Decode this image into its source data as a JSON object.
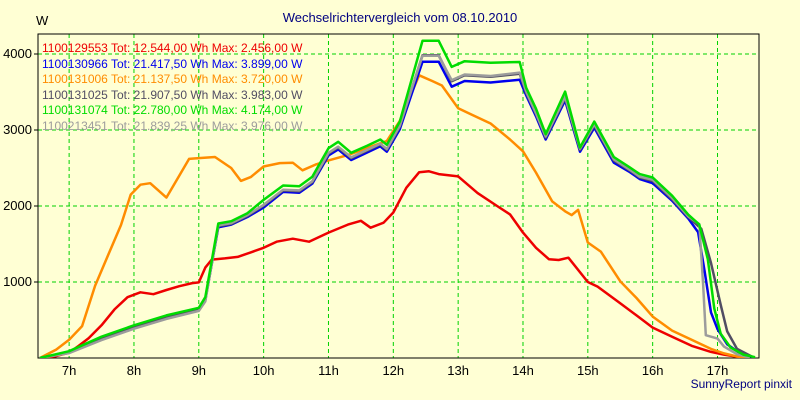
{
  "footer": "SunnyReport pinxit",
  "colors": {
    "background": "#FFFFD4",
    "grid": "#00D200",
    "frame": "#000000",
    "title_text": "#000080",
    "axis_text": "#000000",
    "footer_text": "#000080"
  },
  "chart_data": {
    "type": "line",
    "title": "Wechselrichtervergleich vom 08.10.2010",
    "ylabel": "W",
    "xlabel": "",
    "grid": "on-dashed-green",
    "legend_position": "top-left",
    "xlim": [
      6.52,
      17.64
    ],
    "ylim": [
      0,
      4263
    ],
    "tot_label": "Tot:",
    "wh_unit": "Wh",
    "max_label": "Max:",
    "w_unit": "W",
    "x_ticks": [
      {
        "h": 7,
        "label": "7h"
      },
      {
        "h": 8,
        "label": "8h"
      },
      {
        "h": 9,
        "label": "9h"
      },
      {
        "h": 10,
        "label": "10h"
      },
      {
        "h": 11,
        "label": "11h"
      },
      {
        "h": 12,
        "label": "12h"
      },
      {
        "h": 13,
        "label": "13h"
      },
      {
        "h": 14,
        "label": "14h"
      },
      {
        "h": 15,
        "label": "15h"
      },
      {
        "h": 16,
        "label": "16h"
      },
      {
        "h": 17,
        "label": "17h"
      }
    ],
    "y_ticks": [
      {
        "v": 1000,
        "label": "1000"
      },
      {
        "v": 2000,
        "label": "2000"
      },
      {
        "v": 3000,
        "label": "3000"
      },
      {
        "v": 4000,
        "label": "4000"
      }
    ],
    "draw_order": [
      0,
      2,
      1,
      3,
      5,
      4
    ],
    "series": [
      {
        "serial": "1100129553",
        "tot_wh": "12.544,00",
        "max_w": "2.456,00",
        "color": "#EE0000",
        "points": [
          [
            6.6,
            0
          ],
          [
            6.8,
            25
          ],
          [
            7.0,
            70
          ],
          [
            7.15,
            160
          ],
          [
            7.3,
            260
          ],
          [
            7.5,
            430
          ],
          [
            7.7,
            640
          ],
          [
            7.9,
            800
          ],
          [
            8.1,
            865
          ],
          [
            8.3,
            840
          ],
          [
            8.5,
            895
          ],
          [
            8.7,
            945
          ],
          [
            8.9,
            985
          ],
          [
            9.0,
            995
          ],
          [
            9.1,
            1190
          ],
          [
            9.2,
            1295
          ],
          [
            9.4,
            1310
          ],
          [
            9.6,
            1330
          ],
          [
            9.8,
            1390
          ],
          [
            10.0,
            1450
          ],
          [
            10.2,
            1530
          ],
          [
            10.45,
            1570
          ],
          [
            10.7,
            1530
          ],
          [
            11.0,
            1650
          ],
          [
            11.3,
            1755
          ],
          [
            11.5,
            1805
          ],
          [
            11.65,
            1715
          ],
          [
            11.85,
            1780
          ],
          [
            12.0,
            1915
          ],
          [
            12.2,
            2240
          ],
          [
            12.4,
            2445
          ],
          [
            12.55,
            2456
          ],
          [
            12.7,
            2420
          ],
          [
            13.0,
            2390
          ],
          [
            13.3,
            2170
          ],
          [
            13.6,
            2000
          ],
          [
            13.8,
            1890
          ],
          [
            14.0,
            1650
          ],
          [
            14.2,
            1450
          ],
          [
            14.4,
            1300
          ],
          [
            14.55,
            1290
          ],
          [
            14.7,
            1320
          ],
          [
            15.0,
            1000
          ],
          [
            15.15,
            940
          ],
          [
            15.5,
            720
          ],
          [
            15.75,
            560
          ],
          [
            16.0,
            400
          ],
          [
            16.3,
            280
          ],
          [
            16.6,
            160
          ],
          [
            16.9,
            80
          ],
          [
            17.1,
            45
          ],
          [
            17.35,
            10
          ]
        ]
      },
      {
        "serial": "1100130966",
        "tot_wh": "21.417,50",
        "max_w": "3.899,00",
        "color": "#0000EE",
        "points": [
          [
            6.55,
            0
          ],
          [
            7.0,
            75
          ],
          [
            7.5,
            250
          ],
          [
            8.0,
            400
          ],
          [
            8.5,
            530
          ],
          [
            9.0,
            635
          ],
          [
            9.1,
            760
          ],
          [
            9.3,
            1720
          ],
          [
            9.5,
            1755
          ],
          [
            9.75,
            1855
          ],
          [
            10.0,
            1980
          ],
          [
            10.3,
            2185
          ],
          [
            10.55,
            2175
          ],
          [
            10.75,
            2295
          ],
          [
            11.0,
            2665
          ],
          [
            11.15,
            2745
          ],
          [
            11.35,
            2605
          ],
          [
            11.6,
            2705
          ],
          [
            11.8,
            2785
          ],
          [
            11.9,
            2715
          ],
          [
            12.1,
            3010
          ],
          [
            12.45,
            3899
          ],
          [
            12.7,
            3899
          ],
          [
            12.9,
            3570
          ],
          [
            13.1,
            3645
          ],
          [
            13.5,
            3625
          ],
          [
            13.95,
            3660
          ],
          [
            14.05,
            3455
          ],
          [
            14.2,
            3180
          ],
          [
            14.35,
            2875
          ],
          [
            14.65,
            3390
          ],
          [
            14.88,
            2715
          ],
          [
            15.1,
            3030
          ],
          [
            15.4,
            2570
          ],
          [
            15.65,
            2445
          ],
          [
            15.8,
            2355
          ],
          [
            16.0,
            2300
          ],
          [
            16.3,
            2070
          ],
          [
            16.55,
            1835
          ],
          [
            16.7,
            1655
          ],
          [
            16.8,
            1150
          ],
          [
            16.9,
            600
          ],
          [
            17.0,
            380
          ],
          [
            17.15,
            180
          ],
          [
            17.35,
            60
          ],
          [
            17.55,
            10
          ]
        ]
      },
      {
        "serial": "1100131006",
        "tot_wh": "21.137,50",
        "max_w": "3.720,00",
        "color": "#FF8C00",
        "points": [
          [
            6.55,
            0
          ],
          [
            6.8,
            110
          ],
          [
            7.0,
            240
          ],
          [
            7.2,
            420
          ],
          [
            7.4,
            950
          ],
          [
            7.6,
            1350
          ],
          [
            7.8,
            1750
          ],
          [
            7.95,
            2150
          ],
          [
            8.1,
            2280
          ],
          [
            8.25,
            2300
          ],
          [
            8.5,
            2110
          ],
          [
            8.7,
            2400
          ],
          [
            8.85,
            2620
          ],
          [
            9.0,
            2630
          ],
          [
            9.25,
            2645
          ],
          [
            9.5,
            2500
          ],
          [
            9.65,
            2330
          ],
          [
            9.8,
            2380
          ],
          [
            10.0,
            2520
          ],
          [
            10.25,
            2565
          ],
          [
            10.45,
            2570
          ],
          [
            10.6,
            2470
          ],
          [
            10.8,
            2545
          ],
          [
            11.0,
            2600
          ],
          [
            11.3,
            2670
          ],
          [
            11.6,
            2765
          ],
          [
            11.9,
            2855
          ],
          [
            12.1,
            3120
          ],
          [
            12.4,
            3720
          ],
          [
            12.6,
            3645
          ],
          [
            12.75,
            3585
          ],
          [
            13.0,
            3285
          ],
          [
            13.2,
            3205
          ],
          [
            13.5,
            3085
          ],
          [
            13.8,
            2875
          ],
          [
            14.0,
            2720
          ],
          [
            14.2,
            2440
          ],
          [
            14.45,
            2060
          ],
          [
            14.65,
            1930
          ],
          [
            14.75,
            1880
          ],
          [
            14.85,
            1950
          ],
          [
            15.0,
            1520
          ],
          [
            15.2,
            1400
          ],
          [
            15.5,
            1010
          ],
          [
            15.75,
            790
          ],
          [
            16.0,
            545
          ],
          [
            16.3,
            360
          ],
          [
            16.6,
            240
          ],
          [
            16.9,
            120
          ],
          [
            17.1,
            60
          ],
          [
            17.3,
            20
          ],
          [
            17.45,
            5
          ]
        ]
      },
      {
        "serial": "1100131025",
        "tot_wh": "21.907,50",
        "max_w": "3.983,00",
        "color": "#514D63",
        "points": [
          [
            6.55,
            0
          ],
          [
            7.0,
            80
          ],
          [
            7.5,
            258
          ],
          [
            8.0,
            410
          ],
          [
            8.5,
            540
          ],
          [
            9.0,
            645
          ],
          [
            9.1,
            770
          ],
          [
            9.3,
            1735
          ],
          [
            9.5,
            1765
          ],
          [
            9.75,
            1870
          ],
          [
            10.0,
            2005
          ],
          [
            10.3,
            2205
          ],
          [
            10.55,
            2195
          ],
          [
            10.75,
            2315
          ],
          [
            11.0,
            2690
          ],
          [
            11.15,
            2770
          ],
          [
            11.35,
            2630
          ],
          [
            11.6,
            2730
          ],
          [
            11.8,
            2810
          ],
          [
            11.9,
            2740
          ],
          [
            12.1,
            3045
          ],
          [
            12.45,
            3983
          ],
          [
            12.7,
            3983
          ],
          [
            12.9,
            3640
          ],
          [
            13.1,
            3720
          ],
          [
            13.5,
            3700
          ],
          [
            13.95,
            3740
          ],
          [
            14.05,
            3490
          ],
          [
            14.2,
            3210
          ],
          [
            14.35,
            2900
          ],
          [
            14.65,
            3420
          ],
          [
            14.88,
            2740
          ],
          [
            15.1,
            3060
          ],
          [
            15.4,
            2600
          ],
          [
            15.65,
            2465
          ],
          [
            15.8,
            2375
          ],
          [
            16.0,
            2330
          ],
          [
            16.3,
            2090
          ],
          [
            16.55,
            1855
          ],
          [
            16.75,
            1700
          ],
          [
            16.9,
            1250
          ],
          [
            17.05,
            700
          ],
          [
            17.15,
            350
          ],
          [
            17.3,
            120
          ],
          [
            17.55,
            10
          ]
        ]
      },
      {
        "serial": "1100131074",
        "tot_wh": "22.780,00",
        "max_w": "4.174,00",
        "color": "#00DC00",
        "points": [
          [
            6.55,
            0
          ],
          [
            7.0,
            90
          ],
          [
            7.5,
            280
          ],
          [
            8.0,
            430
          ],
          [
            8.5,
            560
          ],
          [
            9.0,
            660
          ],
          [
            9.1,
            800
          ],
          [
            9.3,
            1770
          ],
          [
            9.5,
            1800
          ],
          [
            9.75,
            1905
          ],
          [
            10.0,
            2080
          ],
          [
            10.3,
            2270
          ],
          [
            10.55,
            2260
          ],
          [
            10.75,
            2385
          ],
          [
            11.0,
            2760
          ],
          [
            11.15,
            2845
          ],
          [
            11.35,
            2700
          ],
          [
            11.6,
            2795
          ],
          [
            11.8,
            2875
          ],
          [
            11.9,
            2805
          ],
          [
            12.1,
            3110
          ],
          [
            12.45,
            4174
          ],
          [
            12.7,
            4174
          ],
          [
            12.9,
            3830
          ],
          [
            13.1,
            3905
          ],
          [
            13.5,
            3885
          ],
          [
            13.95,
            3895
          ],
          [
            14.05,
            3555
          ],
          [
            14.2,
            3280
          ],
          [
            14.35,
            2945
          ],
          [
            14.65,
            3505
          ],
          [
            14.88,
            2770
          ],
          [
            15.1,
            3110
          ],
          [
            15.4,
            2645
          ],
          [
            15.65,
            2505
          ],
          [
            15.8,
            2420
          ],
          [
            16.0,
            2375
          ],
          [
            16.3,
            2135
          ],
          [
            16.55,
            1885
          ],
          [
            16.72,
            1755
          ],
          [
            16.85,
            1300
          ],
          [
            16.95,
            650
          ],
          [
            17.05,
            320
          ],
          [
            17.2,
            140
          ],
          [
            17.4,
            45
          ],
          [
            17.58,
            10
          ]
        ]
      },
      {
        "serial": "1100213451",
        "tot_wh": "21.839,25",
        "max_w": "3.976,00",
        "color": "#9C9C9C",
        "points": [
          [
            6.55,
            0
          ],
          [
            7.0,
            65
          ],
          [
            7.5,
            235
          ],
          [
            8.0,
            385
          ],
          [
            8.5,
            515
          ],
          [
            9.0,
            620
          ],
          [
            9.1,
            745
          ],
          [
            9.3,
            1745
          ],
          [
            9.5,
            1775
          ],
          [
            9.75,
            1880
          ],
          [
            10.0,
            2015
          ],
          [
            10.3,
            2215
          ],
          [
            10.55,
            2205
          ],
          [
            10.75,
            2325
          ],
          [
            11.0,
            2700
          ],
          [
            11.15,
            2780
          ],
          [
            11.35,
            2640
          ],
          [
            11.6,
            2740
          ],
          [
            11.8,
            2820
          ],
          [
            11.9,
            2750
          ],
          [
            12.1,
            3055
          ],
          [
            12.45,
            3976
          ],
          [
            12.7,
            3976
          ],
          [
            12.9,
            3655
          ],
          [
            13.1,
            3730
          ],
          [
            13.5,
            3710
          ],
          [
            13.95,
            3755
          ],
          [
            14.05,
            3505
          ],
          [
            14.2,
            3220
          ],
          [
            14.35,
            2915
          ],
          [
            14.65,
            3435
          ],
          [
            14.88,
            2755
          ],
          [
            15.1,
            3075
          ],
          [
            15.4,
            2615
          ],
          [
            15.65,
            2475
          ],
          [
            15.8,
            2385
          ],
          [
            16.0,
            2345
          ],
          [
            16.3,
            2105
          ],
          [
            16.55,
            1865
          ],
          [
            16.72,
            1760
          ],
          [
            16.78,
            950
          ],
          [
            16.82,
            300
          ],
          [
            17.0,
            255
          ],
          [
            17.1,
            150
          ],
          [
            17.3,
            50
          ],
          [
            17.5,
            5
          ]
        ]
      }
    ]
  }
}
